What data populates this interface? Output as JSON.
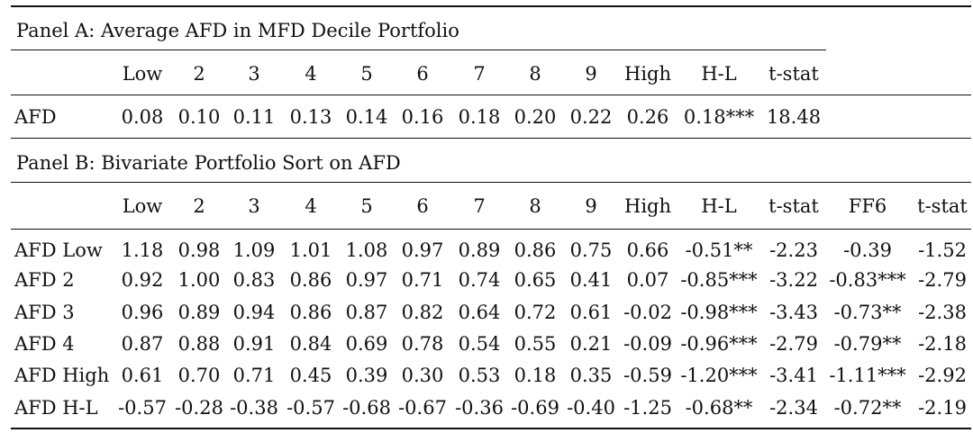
{
  "panel_a": {
    "title": "Panel A: Average AFD in MFD Decile Portfolio",
    "headers": [
      "Low",
      "2",
      "3",
      "4",
      "5",
      "6",
      "7",
      "8",
      "9",
      "High",
      "H-L",
      "t-stat"
    ],
    "rows": [
      {
        "label": "AFD",
        "values": [
          "0.08",
          "0.10",
          "0.11",
          "0.13",
          "0.14",
          "0.16",
          "0.18",
          "0.20",
          "0.22",
          "0.26",
          "0.18***",
          "18.48"
        ]
      }
    ]
  },
  "panel_b": {
    "title": "Panel B: Bivariate Portfolio Sort on AFD",
    "headers": [
      "Low",
      "2",
      "3",
      "4",
      "5",
      "6",
      "7",
      "8",
      "9",
      "High",
      "H-L",
      "t-stat",
      "FF6",
      "t-stat"
    ],
    "rows": [
      {
        "label": "AFD Low",
        "values": [
          "1.18",
          "0.98",
          "1.09",
          "1.01",
          "1.08",
          "0.97",
          "0.89",
          "0.86",
          "0.75",
          "0.66",
          "-0.51**",
          "-2.23",
          "-0.39",
          "-1.52"
        ]
      },
      {
        "label": "AFD 2",
        "values": [
          "0.92",
          "1.00",
          "0.83",
          "0.86",
          "0.97",
          "0.71",
          "0.74",
          "0.65",
          "0.41",
          "0.07",
          "-0.85***",
          "-3.22",
          "-0.83***",
          "-2.79"
        ]
      },
      {
        "label": "AFD 3",
        "values": [
          "0.96",
          "0.89",
          "0.94",
          "0.86",
          "0.87",
          "0.82",
          "0.64",
          "0.72",
          "0.61",
          "-0.02",
          "-0.98***",
          "-3.43",
          "-0.73**",
          "-2.38"
        ]
      },
      {
        "label": "AFD 4",
        "values": [
          "0.87",
          "0.88",
          "0.91",
          "0.84",
          "0.69",
          "0.78",
          "0.54",
          "0.55",
          "0.21",
          "-0.09",
          "-0.96***",
          "-2.79",
          "-0.79**",
          "-2.18"
        ]
      },
      {
        "label": "AFD High",
        "values": [
          "0.61",
          "0.70",
          "0.71",
          "0.45",
          "0.39",
          "0.30",
          "0.53",
          "0.18",
          "0.35",
          "-0.59",
          "-1.20***",
          "-3.41",
          "-1.11***",
          "-2.92"
        ]
      },
      {
        "label": "AFD H-L",
        "values": [
          "-0.57",
          "-0.28",
          "-0.38",
          "-0.57",
          "-0.68",
          "-0.67",
          "-0.36",
          "-0.69",
          "-0.40",
          "-1.25",
          "-0.68**",
          "-2.34",
          "-0.72**",
          "-2.19"
        ]
      }
    ]
  }
}
